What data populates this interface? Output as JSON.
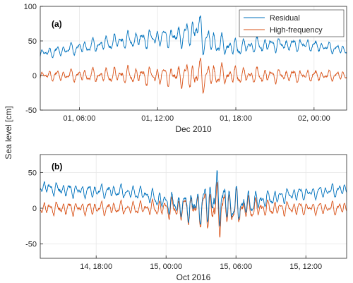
{
  "figure": {
    "ylabel": "Sea level [cm]",
    "colors": {
      "residual": "#0072BD",
      "high_frequency": "#D95319",
      "grid": "#e6e6e6",
      "axis": "#262626"
    }
  },
  "chart_data": [
    {
      "type": "line",
      "panel_label": "(a)",
      "xlabel": "Dec 2010",
      "x_unit": "hours since 2010-12-01 00:00",
      "xlim": [
        3,
        26.5
      ],
      "x_ticks": [
        6,
        12,
        18,
        24
      ],
      "x_tick_labels": [
        "01, 06:00",
        "01, 12:00",
        "01, 18:00",
        "02, 00:00"
      ],
      "ylim": [
        -50,
        100
      ],
      "y_ticks": [
        -50,
        0,
        50,
        100
      ],
      "y_tick_labels": [
        "-50",
        "0",
        "50",
        "100"
      ],
      "grid": true,
      "legend": {
        "placement": "top-right",
        "entries": [
          "Residual",
          "High-frequency"
        ]
      },
      "series": [
        {
          "name": "Residual",
          "color": "#0072BD",
          "x": [
            3,
            4,
            5,
            6,
            7,
            8,
            9,
            10,
            11,
            12,
            13,
            14,
            14.5,
            15,
            15.5,
            16,
            16.5,
            17,
            18,
            19,
            20,
            21,
            22,
            23,
            24,
            25,
            26,
            26.5
          ],
          "y": [
            32,
            34,
            37,
            40,
            43,
            46,
            49,
            51,
            53,
            55,
            56,
            58,
            60,
            70,
            55,
            50,
            46,
            43,
            40,
            43,
            44,
            45,
            44,
            45,
            43,
            41,
            38,
            36
          ],
          "hf_amplitude": [
            8,
            8,
            9,
            10,
            11,
            12,
            12,
            14,
            14,
            14,
            16,
            18,
            22,
            27,
            25,
            22,
            18,
            16,
            14,
            12,
            12,
            11,
            10,
            10,
            9,
            8,
            8,
            8
          ]
        },
        {
          "name": "High-frequency",
          "color": "#D95319",
          "x": [
            3,
            26.5
          ],
          "y": [
            0,
            0
          ],
          "hf_amplitude": [
            8,
            8,
            9,
            10,
            11,
            12,
            12,
            14,
            14,
            14,
            16,
            18,
            22,
            27,
            25,
            22,
            18,
            16,
            14,
            12,
            12,
            11,
            10,
            10,
            9,
            8,
            8,
            8
          ]
        }
      ]
    },
    {
      "type": "line",
      "panel_label": "(b)",
      "xlabel": "Oct 2016",
      "x_unit": "hours since 2016-10-14 00:00",
      "xlim": [
        13.2,
        39.5
      ],
      "x_ticks": [
        18,
        24,
        30,
        36
      ],
      "x_tick_labels": [
        "14, 18:00",
        "15, 00:00",
        "15, 06:00",
        "15, 12:00"
      ],
      "ylim": [
        -70,
        75
      ],
      "y_ticks": [
        -50,
        0,
        50
      ],
      "y_tick_labels": [
        "-50",
        "0",
        "50"
      ],
      "grid": true,
      "series": [
        {
          "name": "Residual",
          "color": "#0072BD",
          "x": [
            13.2,
            15,
            17,
            19,
            21,
            22,
            23,
            24,
            25,
            26,
            27,
            28,
            28.5,
            29,
            29.5,
            30,
            31,
            32,
            33,
            34,
            35,
            36,
            37,
            38,
            39.5
          ],
          "y": [
            30,
            26,
            24,
            24,
            22,
            20,
            14,
            8,
            5,
            3,
            4,
            12,
            18,
            8,
            4,
            3,
            6,
            10,
            14,
            17,
            20,
            21,
            22,
            24,
            26
          ],
          "hf_amplitude": [
            10,
            10,
            10,
            10,
            10,
            10,
            12,
            14,
            18,
            22,
            28,
            35,
            40,
            34,
            30,
            26,
            20,
            14,
            12,
            11,
            10,
            10,
            10,
            10,
            10
          ]
        },
        {
          "name": "High-frequency",
          "color": "#D95319",
          "x": [
            13.2,
            39.5
          ],
          "y": [
            0,
            0
          ],
          "hf_amplitude": [
            10,
            10,
            10,
            10,
            10,
            10,
            12,
            14,
            18,
            22,
            28,
            35,
            40,
            34,
            30,
            26,
            20,
            14,
            12,
            11,
            10,
            10,
            10,
            10,
            10
          ]
        }
      ]
    }
  ]
}
